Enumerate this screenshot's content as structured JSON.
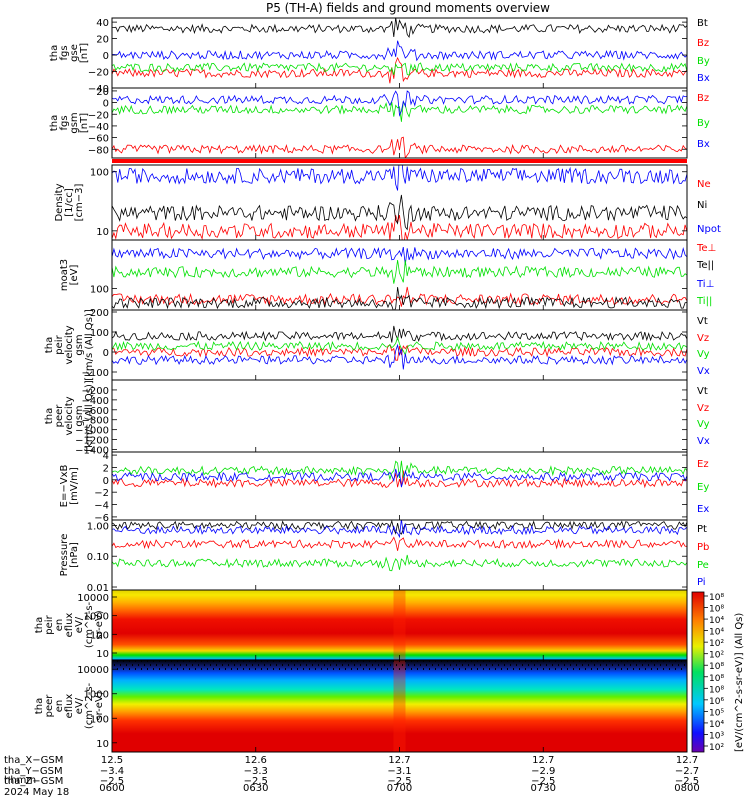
{
  "title": "P5 (TH-A) fields and ground moments overview",
  "colors": {
    "black": "#000000",
    "red": "#ff0000",
    "green": "#00e000",
    "blue": "#0000ff"
  },
  "chart_data": [
    {
      "type": "line",
      "id": "fgs",
      "ylabel": [
        "tha",
        "fgs",
        "gse",
        "[nT]"
      ],
      "ylim": [
        -40,
        45
      ],
      "ticks": [
        "40",
        "20",
        "0",
        "−20",
        "−40"
      ],
      "tick_values": [
        40,
        20,
        0,
        -20,
        -40
      ],
      "series": [
        {
          "name": "Bt",
          "color": "black",
          "base": 32
        },
        {
          "name": "Bz",
          "color": "red",
          "base": -22
        },
        {
          "name": "By",
          "color": "green",
          "base": -15
        },
        {
          "name": "Bx",
          "color": "blue",
          "base": 0
        }
      ]
    },
    {
      "type": "line",
      "id": "fgs-gsm",
      "ylabel": [
        "tha",
        "fgs",
        "gsm",
        "[nT]"
      ],
      "ylim": [
        -95,
        25
      ],
      "ticks": [
        "20",
        "0",
        "−20",
        "−40",
        "−60",
        "−80"
      ],
      "tick_values": [
        20,
        0,
        -20,
        -40,
        -60,
        -80
      ],
      "series": [
        {
          "name": "Bz",
          "color": "red",
          "base": -80
        },
        {
          "name": "By",
          "color": "green",
          "base": -12
        },
        {
          "name": "Bx",
          "color": "blue",
          "base": 5
        }
      ]
    },
    {
      "type": "line",
      "id": "density",
      "ylabel": [
        "Density",
        "[1/cc]",
        "[cm−3]"
      ],
      "scale": "log",
      "ylim": [
        7,
        130
      ],
      "ticks": [
        "100",
        "10"
      ],
      "tick_values": [
        100,
        10
      ],
      "series": [
        {
          "name": "Ne",
          "color": "red",
          "base": 10
        },
        {
          "name": "Ni",
          "color": "black",
          "base": 20
        },
        {
          "name": "Npot",
          "color": "blue",
          "base": 85
        }
      ]
    },
    {
      "type": "line",
      "id": "temp",
      "ylabel": [
        "moat3",
        "[eV]"
      ],
      "scale": "log",
      "ylim": [
        30,
        1500
      ],
      "ticks": [
        "100"
      ],
      "tick_values": [
        100
      ],
      "series": [
        {
          "name": "Te⊥",
          "color": "red",
          "base": 55
        },
        {
          "name": "Te||",
          "color": "black",
          "base": 45
        },
        {
          "name": "Ti⊥",
          "color": "blue",
          "base": 700
        },
        {
          "name": "Ti||",
          "color": "green",
          "base": 250
        }
      ]
    },
    {
      "type": "line",
      "id": "peir-vel",
      "ylabel": [
        "tha",
        "peir",
        "velocity",
        "gsm",
        "[km/s (All Qs)]"
      ],
      "ylim": [
        -140,
        210
      ],
      "ticks": [
        "200",
        "100",
        "0",
        "−100"
      ],
      "tick_values": [
        200,
        100,
        0,
        -100
      ],
      "series": [
        {
          "name": "Vt",
          "color": "black",
          "base": 80
        },
        {
          "name": "Vz",
          "color": "red",
          "base": 0
        },
        {
          "name": "Vy",
          "color": "green",
          "base": 30
        },
        {
          "name": "Vx",
          "color": "blue",
          "base": -40
        }
      ]
    },
    {
      "type": "line",
      "id": "peer-vel",
      "ylabel": [
        "tha",
        "peer",
        "velocity",
        "gsm",
        "[km/s (All Qs)]"
      ],
      "ylim": [
        -1450,
        0
      ],
      "ticks": [
        "−200",
        "−400",
        "−600",
        "−800",
        "−1000",
        "−1200",
        "−1400"
      ],
      "tick_values": [
        -200,
        -400,
        -600,
        -800,
        -1000,
        -1200,
        -1400
      ],
      "series": [
        {
          "name": "Vt",
          "color": "black"
        },
        {
          "name": "Vz",
          "color": "red"
        },
        {
          "name": "Vy",
          "color": "green"
        },
        {
          "name": "Vx",
          "color": "blue"
        }
      ]
    },
    {
      "type": "line",
      "id": "efield",
      "ylabel": [
        "E=−VxB",
        "[mV/m]"
      ],
      "ylim": [
        -6.5,
        4.5
      ],
      "ticks": [
        "4",
        "2",
        "0",
        "−2",
        "−4",
        "−6"
      ],
      "tick_values": [
        4,
        2,
        0,
        -2,
        -4,
        -6
      ],
      "series": [
        {
          "name": "Ez",
          "color": "red",
          "base": -0.5
        },
        {
          "name": "Ey",
          "color": "green",
          "base": 1.5
        },
        {
          "name": "Ex",
          "color": "blue",
          "base": 0.5
        }
      ]
    },
    {
      "type": "line",
      "id": "pressure",
      "ylabel": [
        "Pressure",
        "[nPa]"
      ],
      "scale": "log",
      "ylim": [
        0.008,
        1.5
      ],
      "ticks": [
        "1.00",
        "0.10",
        "0.01"
      ],
      "tick_values": [
        1,
        0.1,
        0.01
      ],
      "series": [
        {
          "name": "Pt",
          "color": "black",
          "base": 1.0
        },
        {
          "name": "Pb",
          "color": "red",
          "base": 0.25
        },
        {
          "name": "Pe",
          "color": "green",
          "base": 0.06
        },
        {
          "name": "Pi",
          "color": "blue",
          "base": 0.7
        }
      ]
    },
    {
      "type": "heatmap",
      "id": "peir-flux",
      "ylabel": [
        "tha",
        "peir",
        "en",
        "eflux",
        "eV/",
        "(cm^2-s-",
        "sr-eV)"
      ],
      "ticks": [
        "10000",
        "1000",
        "100",
        "10"
      ],
      "tick_values": [
        10000,
        1000,
        100,
        10
      ]
    },
    {
      "type": "heatmap",
      "id": "peer-flux",
      "ylabel": [
        "tha",
        "peer",
        "en",
        "eflux",
        "eV/",
        "(cm^2-s-",
        "sr-eV)"
      ],
      "ticks": [
        "10000",
        "1000",
        "100",
        "10"
      ],
      "tick_values": [
        10000,
        1000,
        100,
        10
      ]
    }
  ],
  "colorbar": {
    "label": "[eV/(cm^2-s-sr-eV)] (All Qs)",
    "range": [
      2,
      8
    ],
    "ticks": [
      "10⁸",
      "10⁸",
      "10⁴",
      "10⁴",
      "10²",
      "10²",
      "10⁸",
      "10⁸",
      "10⁸",
      "10⁶",
      "10⁵",
      "10⁴",
      "10³",
      "10²"
    ]
  },
  "x_axis": {
    "rows": [
      {
        "label": "tha_X−GSM",
        "values": [
          "12.5",
          "12.6",
          "12.7",
          "12.7",
          "12.7"
        ]
      },
      {
        "label": "tha_Y−GSM",
        "values": [
          "−3.4",
          "−3.3",
          "−3.1",
          "−2.9",
          "−2.7"
        ]
      },
      {
        "label": "tha_Z−GSM",
        "values": [
          "−2.5",
          "−2.5",
          "−2.5",
          "−2.5",
          "−2.5"
        ]
      },
      {
        "label": "hhmm",
        "values": [
          "0600",
          "0630",
          "0700",
          "0730",
          "0800"
        ]
      }
    ],
    "date": "2024 May 18",
    "tick_times_min": [
      0,
      30,
      60,
      90,
      120
    ],
    "event_time_min": 60
  }
}
